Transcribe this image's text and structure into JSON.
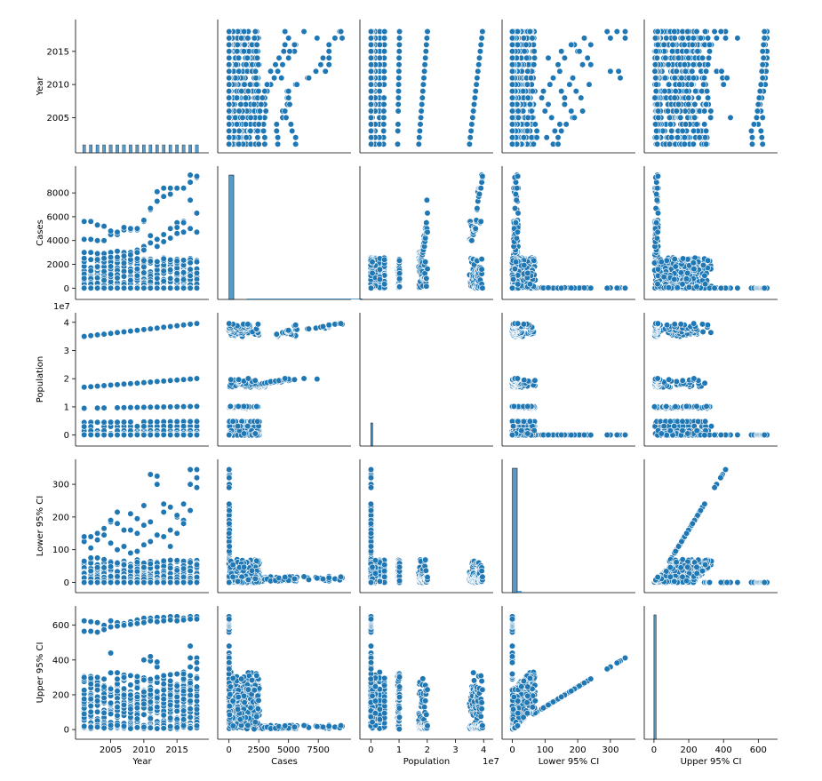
{
  "chart_data": {
    "type": "scatter",
    "subtype": "pairplot",
    "variables": [
      "Year",
      "Cases",
      "Population",
      "Lower 95% CI",
      "Upper 95% CI"
    ],
    "point_color": "#1f77b4",
    "point_edge_color": "#ffffff",
    "grid": false,
    "legend": "none",
    "axes": {
      "Year": {
        "label": "Year",
        "range": [
          2000.5,
          2019
        ],
        "ticks": [
          2005,
          2010,
          2015
        ],
        "tick_labels": [
          "2005",
          "2010",
          "2015"
        ],
        "offset_label": ""
      },
      "Cases": {
        "label": "Cases",
        "range": [
          -500,
          9800
        ],
        "ticks": [
          0,
          2500,
          5000,
          7500
        ],
        "tick_labels": [
          "0",
          "2500",
          "5000",
          "7500"
        ],
        "y_ticks": [
          0,
          2000,
          4000,
          6000,
          8000
        ],
        "y_tick_labels": [
          "0",
          "2000",
          "4000",
          "6000",
          "8000"
        ],
        "offset_label": ""
      },
      "Population": {
        "label": "Population",
        "range": [
          -2000000,
          41500000
        ],
        "ticks": [
          0,
          10000000,
          20000000,
          30000000,
          40000000
        ],
        "tick_labels": [
          "0",
          "1",
          "2",
          "3",
          "4"
        ],
        "offset_label": "1e7"
      },
      "Lower 95% CI": {
        "label": "Lower 95% CI",
        "range": [
          -15,
          360
        ],
        "ticks": [
          0,
          100,
          200,
          300
        ],
        "tick_labels": [
          "0",
          "100",
          "200",
          "300"
        ],
        "offset_label": ""
      },
      "Upper 95% CI": {
        "label": "Upper 95% CI",
        "range": [
          -25,
          680
        ],
        "ticks": [
          0,
          200,
          400,
          600
        ],
        "tick_labels": [
          "0",
          "200",
          "400",
          "600"
        ],
        "offset_label": ""
      }
    },
    "years": [
      2001,
      2002,
      2003,
      2004,
      2005,
      2006,
      2007,
      2008,
      2009,
      2010,
      2011,
      2012,
      2013,
      2014,
      2015,
      2016,
      2017,
      2018
    ],
    "population_levels": [
      35000000,
      17000000,
      9500000,
      4500000,
      3000000,
      1500000,
      500000,
      0
    ],
    "population_growth_per_year": [
      270000,
      180000,
      40000,
      20000,
      10000,
      5000,
      2000,
      0
    ],
    "diagonal_histograms": {
      "Year": {
        "bins": [
          2001,
          2002,
          2003,
          2004,
          2005,
          2006,
          2007,
          2008,
          2009,
          2010,
          2011,
          2012,
          2013,
          2014,
          2015,
          2016,
          2017,
          2018
        ],
        "relative_heights": [
          1,
          1,
          1,
          1,
          1,
          1,
          1,
          1,
          1,
          1,
          1,
          1,
          1,
          1,
          1,
          1,
          1,
          1
        ]
      },
      "Cases": {
        "bin_edges": [
          0,
          400
        ],
        "relative_height": 1.0
      },
      "Population": {
        "bin_edges": [
          0,
          300000
        ],
        "relative_height": 1.0
      },
      "Lower 95% CI": {
        "bin_edges": [
          0,
          15
        ],
        "relative_height": 1.0
      },
      "Upper 95% CI": {
        "bin_edges": [
          0,
          12
        ],
        "relative_height": 1.0
      }
    },
    "high_case_series": [
      {
        "name": "",
        "values": [
          4100,
          4100,
          4000,
          4000,
          4500,
          4500,
          4900,
          4900,
          4900,
          5600,
          6600,
          7300,
          7700,
          7900,
          8400,
          8400,
          8900,
          9300
        ]
      },
      {
        "name": "",
        "values": [
          5600,
          5600,
          5300,
          5200,
          4800,
          4700,
          5100,
          5000,
          5000,
          5700,
          6700,
          8100,
          8400,
          8400,
          5500,
          5600,
          9500,
          9400
        ]
      },
      {
        "name": "",
        "values": [
          3000,
          3000,
          2900,
          2900,
          3000,
          3100,
          3000,
          3000,
          3200,
          3500,
          4400,
          4100,
          4500,
          5000,
          5100,
          5500,
          7400,
          6300
        ]
      },
      {
        "name": "",
        "values": [
          2500,
          2400,
          2400,
          2500,
          2600,
          2600,
          2700,
          2800,
          3000,
          3200,
          3800,
          3500,
          3900,
          4200,
          4600,
          4700,
          5000,
          4700
        ]
      }
    ],
    "lower_ci_high_series": [
      {
        "name": "",
        "values": [
          125,
          140,
          150,
          165,
          185,
          180,
          160,
          210,
          195,
          235,
          330,
          300,
          240,
          230,
          200,
          240,
          300,
          345
        ]
      },
      {
        "name": "",
        "values": [
          140,
          105,
          130,
          145,
          190,
          215,
          110,
          160,
          150,
          175,
          185,
          325,
          215,
          110,
          150,
          190,
          345,
          320
        ]
      },
      {
        "name": "",
        "values": [
          65,
          75,
          75,
          70,
          120,
          100,
          110,
          90,
          95,
          115,
          125,
          145,
          140,
          160,
          205,
          180,
          220,
          290
        ]
      }
    ],
    "upper_ci_high_series": [
      {
        "name": "",
        "values": [
          625,
          620,
          615,
          600,
          625,
          615,
          610,
          620,
          630,
          640,
          640,
          645,
          645,
          650,
          650,
          640,
          650,
          650
        ]
      },
      {
        "name": "",
        "values": [
          565,
          565,
          560,
          575,
          590,
          595,
          600,
          605,
          610,
          615,
          625,
          620,
          625,
          630,
          625,
          630,
          635,
          635
        ]
      },
      {
        "name": "",
        "values": [
          300,
          295,
          300,
          290,
          440,
          290,
          300,
          310,
          305,
          400,
          420,
          300,
          310,
          315,
          320,
          320,
          480,
          385
        ]
      }
    ]
  }
}
